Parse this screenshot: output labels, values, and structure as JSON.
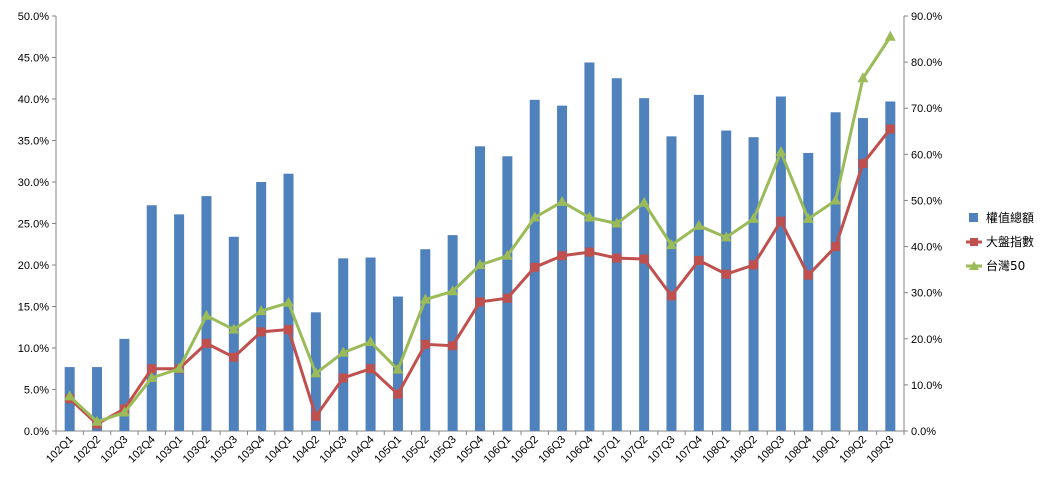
{
  "chart_data": {
    "type": "bar",
    "categories": [
      "102Q1",
      "102Q2",
      "102Q3",
      "102Q4",
      "103Q1",
      "103Q2",
      "103Q3",
      "103Q4",
      "104Q1",
      "104Q2",
      "104Q3",
      "104Q4",
      "105Q1",
      "105Q2",
      "105Q3",
      "105Q4",
      "106Q1",
      "106Q2",
      "106Q3",
      "106Q4",
      "107Q1",
      "107Q2",
      "107Q3",
      "107Q4",
      "108Q1",
      "108Q2",
      "108Q3",
      "108Q4",
      "109Q1",
      "109Q2",
      "109Q3"
    ],
    "y_left": {
      "ticks": [
        "0.0%",
        "5.0%",
        "10.0%",
        "15.0%",
        "20.0%",
        "25.0%",
        "30.0%",
        "35.0%",
        "40.0%",
        "45.0%",
        "50.0%"
      ],
      "ylim": [
        0,
        50
      ]
    },
    "y_right": {
      "ticks": [
        "0.0%",
        "10.0%",
        "20.0%",
        "30.0%",
        "40.0%",
        "50.0%",
        "60.0%",
        "70.0%",
        "80.0%",
        "90.0%"
      ],
      "ylim": [
        0,
        90
      ]
    },
    "series": [
      {
        "name": "權值總額",
        "type": "bar",
        "axis": "left",
        "color": "#4F81BD",
        "values": [
          7.7,
          7.7,
          11.1,
          27.2,
          26.1,
          28.3,
          23.4,
          30.0,
          31.0,
          14.3,
          20.8,
          20.9,
          16.2,
          21.9,
          23.6,
          34.3,
          33.1,
          39.9,
          39.2,
          44.4,
          42.5,
          40.1,
          35.5,
          40.5,
          36.2,
          35.4,
          40.3,
          33.5,
          38.4,
          37.7,
          39.7
        ]
      },
      {
        "name": "大盤指數",
        "type": "line",
        "axis": "right",
        "color": "#C0504D",
        "marker": "square",
        "values": [
          7.0,
          1.5,
          4.8,
          13.5,
          13.5,
          19.0,
          16.0,
          21.5,
          22.0,
          3.2,
          11.5,
          13.5,
          8.0,
          18.8,
          18.5,
          28.0,
          28.8,
          35.5,
          38.0,
          38.8,
          37.5,
          37.3,
          29.3,
          37.0,
          34.0,
          36.0,
          45.5,
          33.8,
          40.0,
          58.0,
          65.5
        ]
      },
      {
        "name": "台灣50",
        "type": "line",
        "axis": "right",
        "color": "#9BBB59",
        "marker": "triangle",
        "values": [
          7.5,
          2.0,
          4.0,
          11.5,
          13.5,
          25.0,
          22.0,
          26.0,
          27.8,
          12.5,
          17.0,
          19.3,
          13.3,
          28.5,
          30.3,
          36.0,
          38.0,
          46.3,
          49.7,
          46.3,
          45.0,
          49.5,
          40.3,
          44.5,
          42.0,
          46.0,
          60.5,
          46.0,
          50.0,
          76.5,
          85.5
        ]
      }
    ],
    "legend": "right",
    "grid": false
  }
}
